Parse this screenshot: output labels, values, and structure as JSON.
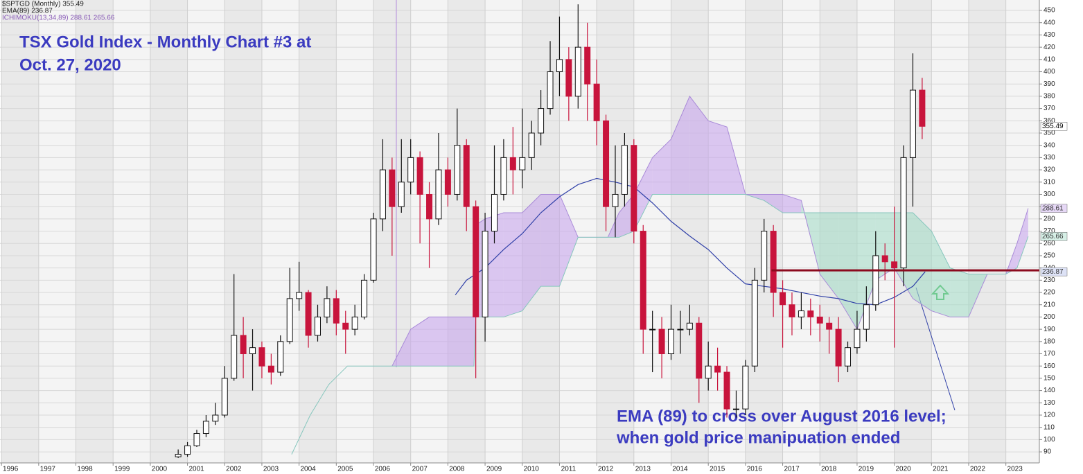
{
  "chart_data": {
    "type": "candlestick",
    "title": [
      "TSX Gold Index - Monthly Chart #3 at",
      "Oct. 27, 2020"
    ],
    "annotation": [
      "EMA (89) to  cross over August 2016 level;",
      "when gold price manipuation ended"
    ],
    "legend": [
      "$SPTGD (Monthly) 355.49",
      "EMA(89) 236.87",
      "ICHIMOKU(13,34,89) 288.61 265.66"
    ],
    "xlim": [
      1995.96,
      2023.9
    ],
    "ylim": [
      81,
      458.5
    ],
    "xticks": [
      1996,
      1997,
      1998,
      1999,
      2000,
      2001,
      2002,
      2003,
      2004,
      2005,
      2006,
      2007,
      2008,
      2009,
      2010,
      2011,
      2012,
      2013,
      2014,
      2015,
      2016,
      2017,
      2018,
      2019,
      2020,
      2021,
      2022,
      2023
    ],
    "yticks": [
      90,
      100,
      110,
      120,
      130,
      140,
      150,
      160,
      170,
      180,
      190,
      200,
      210,
      220,
      230,
      240,
      250,
      260,
      270,
      280,
      290,
      300,
      310,
      320,
      330,
      340,
      350,
      360,
      370,
      380,
      390,
      400,
      410,
      420,
      430,
      440,
      450
    ],
    "grid": true,
    "candles": {
      "up_color": "#ffffff",
      "down_color": "#c8143c",
      "x": [
        2000.75,
        2001,
        2001.25,
        2001.5,
        2001.75,
        2002,
        2002.25,
        2002.5,
        2002.75,
        2003,
        2003.25,
        2003.5,
        2003.75,
        2004,
        2004.25,
        2004.5,
        2004.75,
        2005,
        2005.25,
        2005.5,
        2005.75,
        2006,
        2006.25,
        2006.5,
        2006.75,
        2007,
        2007.25,
        2007.5,
        2007.75,
        2008,
        2008.25,
        2008.5,
        2008.75,
        2009,
        2009.25,
        2009.5,
        2009.75,
        2010,
        2010.25,
        2010.5,
        2010.75,
        2011,
        2011.25,
        2011.5,
        2011.75,
        2012,
        2012.25,
        2012.5,
        2012.75,
        2013,
        2013.25,
        2013.5,
        2013.75,
        2014,
        2014.25,
        2014.5,
        2014.75,
        2015,
        2015.25,
        2015.5,
        2015.75,
        2016,
        2016.25,
        2016.5,
        2016.75,
        2017,
        2017.25,
        2017.5,
        2017.75,
        2018,
        2018.25,
        2018.5,
        2018.75,
        2019,
        2019.25,
        2019.5,
        2019.75,
        2020,
        2020.25,
        2020.5,
        2020.75
      ],
      "open": [
        86,
        88,
        95,
        105,
        115,
        120,
        150,
        185,
        170,
        175,
        160,
        155,
        180,
        215,
        220,
        185,
        200,
        215,
        195,
        190,
        200,
        230,
        280,
        320,
        290,
        310,
        330,
        300,
        280,
        320,
        300,
        340,
        290,
        200,
        270,
        300,
        330,
        320,
        330,
        350,
        370,
        400,
        410,
        380,
        420,
        390,
        360,
        290,
        300,
        340,
        270,
        190,
        190,
        170,
        190,
        190,
        195,
        150,
        160,
        155,
        125,
        125,
        160,
        230,
        270,
        220,
        210,
        200,
        205,
        200,
        195,
        190,
        160,
        175,
        190,
        210,
        250,
        245,
        240,
        330,
        385
      ],
      "high": [
        92,
        98,
        108,
        120,
        130,
        160,
        235,
        200,
        190,
        180,
        170,
        185,
        240,
        245,
        222,
        210,
        225,
        222,
        205,
        210,
        235,
        285,
        345,
        330,
        345,
        345,
        335,
        310,
        350,
        330,
        370,
        345,
        295,
        285,
        340,
        345,
        355,
        370,
        360,
        385,
        425,
        445,
        420,
        455,
        440,
        410,
        365,
        340,
        350,
        345,
        275,
        205,
        200,
        210,
        205,
        210,
        200,
        180,
        175,
        160,
        140,
        165,
        240,
        280,
        275,
        230,
        220,
        220,
        215,
        210,
        200,
        200,
        180,
        205,
        225,
        270,
        260,
        290,
        340,
        415,
        395
      ],
      "low": [
        85,
        86,
        94,
        102,
        112,
        118,
        148,
        150,
        140,
        150,
        145,
        152,
        178,
        205,
        175,
        180,
        195,
        185,
        170,
        185,
        198,
        228,
        270,
        250,
        285,
        300,
        260,
        240,
        275,
        290,
        295,
        270,
        150,
        180,
        260,
        295,
        300,
        305,
        320,
        340,
        365,
        380,
        360,
        370,
        360,
        340,
        270,
        265,
        290,
        260,
        170,
        155,
        150,
        165,
        170,
        185,
        130,
        140,
        140,
        118,
        118,
        120,
        155,
        220,
        200,
        175,
        185,
        190,
        185,
        180,
        170,
        147,
        155,
        170,
        180,
        205,
        230,
        175,
        225,
        290,
        345
      ],
      "close": [
        88,
        95,
        105,
        115,
        120,
        150,
        185,
        170,
        175,
        160,
        155,
        180,
        215,
        220,
        185,
        200,
        215,
        195,
        190,
        200,
        230,
        280,
        320,
        290,
        310,
        330,
        300,
        280,
        320,
        300,
        340,
        290,
        200,
        270,
        300,
        330,
        320,
        330,
        350,
        370,
        400,
        410,
        380,
        420,
        390,
        360,
        290,
        300,
        340,
        270,
        190,
        190,
        170,
        190,
        190,
        195,
        150,
        160,
        155,
        125,
        125,
        160,
        230,
        270,
        220,
        210,
        200,
        205,
        200,
        195,
        190,
        160,
        175,
        190,
        210,
        250,
        245,
        240,
        330,
        385,
        355.49
      ]
    },
    "ema": {
      "color": "#3040a8",
      "x": [
        2008.2,
        2008.5,
        2009,
        2009.5,
        2010,
        2010.5,
        2011,
        2011.5,
        2012,
        2012.5,
        2013,
        2013.5,
        2014,
        2014.5,
        2015,
        2015.5,
        2016,
        2016.5,
        2017,
        2017.5,
        2018,
        2018.5,
        2019,
        2019.5,
        2020,
        2020.5,
        2020.83
      ],
      "values": [
        218,
        230,
        240,
        255,
        268,
        285,
        298,
        308,
        313,
        310,
        306,
        293,
        278,
        266,
        255,
        240,
        227,
        225,
        223,
        220,
        217,
        215,
        211,
        210,
        216,
        225,
        236.87
      ]
    },
    "ichimoku": {
      "up_color": "#c8a6ec",
      "down_color": "#a6dcc8",
      "span_a_color": "#a98ad8",
      "span_b_color": "#86c6bd",
      "x": [
        2003.8,
        2004.3,
        2004.8,
        2005.3,
        2005.6,
        2006.5,
        2007,
        2007.5,
        2008,
        2008.7,
        2008.75,
        2009,
        2009.5,
        2010,
        2010.5,
        2011,
        2011.5,
        2011.8,
        2012.3,
        2012.6,
        2013,
        2013.5,
        2014,
        2014.5,
        2015,
        2015.5,
        2016,
        2016.5,
        2017,
        2017.5,
        2018,
        2018.5,
        2019,
        2019.5,
        2020,
        2020.5,
        2021,
        2021.5,
        2022,
        2022.5,
        2023,
        2023.3,
        2023.6
      ],
      "span_a": [
        null,
        null,
        null,
        null,
        null,
        160,
        190,
        200,
        200,
        200,
        275,
        280,
        285,
        285,
        300,
        300,
        265,
        265,
        265,
        285,
        300,
        330,
        345,
        380,
        360,
        355,
        300,
        300,
        300,
        295,
        235,
        215,
        190,
        230,
        240,
        215,
        205,
        200,
        200,
        235,
        235,
        260,
        288.61
      ],
      "span_b": [
        88,
        120,
        145,
        160,
        160,
        160,
        160,
        160,
        160,
        160,
        200,
        200,
        200,
        205,
        225,
        225,
        265,
        265,
        265,
        265,
        270,
        300,
        300,
        300,
        300,
        300,
        300,
        295,
        285,
        285,
        285,
        285,
        285,
        285,
        285,
        285,
        270,
        240,
        235,
        235,
        235,
        240,
        265.66
      ]
    },
    "level_line": {
      "color": "#8c0a1e",
      "value": 238,
      "from": 2016.7
    }
  }
}
